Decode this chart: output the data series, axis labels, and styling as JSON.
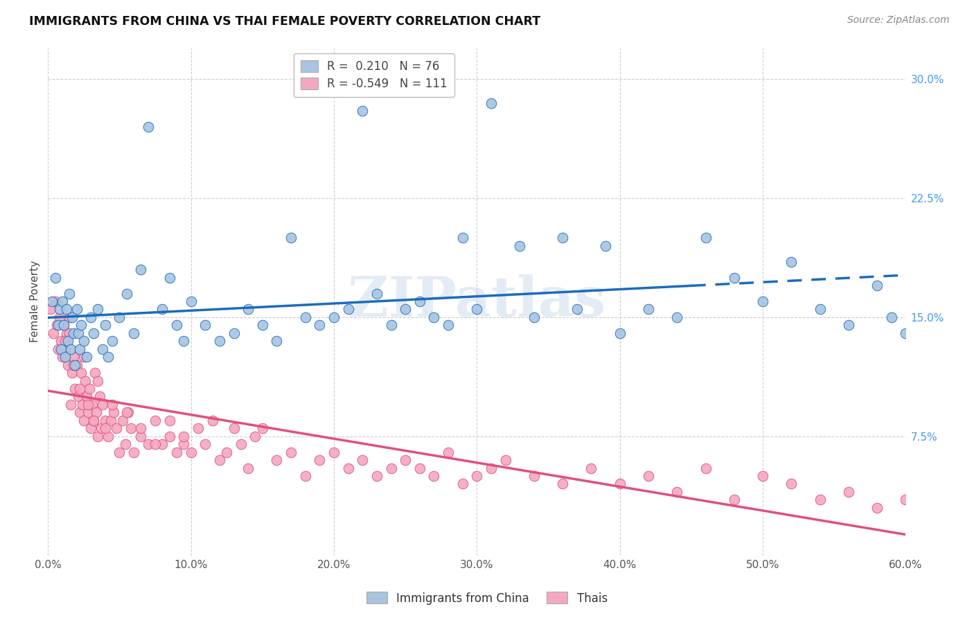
{
  "title": "IMMIGRANTS FROM CHINA VS THAI FEMALE POVERTY CORRELATION CHART",
  "source": "Source: ZipAtlas.com",
  "ylabel": "Female Poverty",
  "xlim": [
    0.0,
    0.6
  ],
  "ylim": [
    0.0,
    0.32
  ],
  "xticks": [
    0.0,
    0.1,
    0.2,
    0.3,
    0.4,
    0.5,
    0.6
  ],
  "xticklabels": [
    "0.0%",
    "10.0%",
    "20.0%",
    "30.0%",
    "40.0%",
    "50.0%",
    "60.0%"
  ],
  "yticks_right": [
    0.075,
    0.15,
    0.225,
    0.3
  ],
  "ytick_labels_right": [
    "7.5%",
    "15.0%",
    "22.5%",
    "30.0%"
  ],
  "china_R": 0.21,
  "china_N": 76,
  "thai_R": -0.549,
  "thai_N": 111,
  "china_color": "#a8c4e0",
  "thai_color": "#f4a8c0",
  "china_line_color": "#1a6bbf",
  "thai_line_color": "#e0507a",
  "legend_label_china": "Immigrants from China",
  "legend_label_thai": "Thais",
  "watermark": "ZIPatlas",
  "china_scatter_x": [
    0.003,
    0.005,
    0.007,
    0.008,
    0.009,
    0.01,
    0.011,
    0.012,
    0.013,
    0.014,
    0.015,
    0.016,
    0.017,
    0.018,
    0.019,
    0.02,
    0.021,
    0.022,
    0.023,
    0.025,
    0.027,
    0.03,
    0.032,
    0.035,
    0.038,
    0.04,
    0.042,
    0.045,
    0.05,
    0.055,
    0.06,
    0.065,
    0.07,
    0.08,
    0.085,
    0.09,
    0.095,
    0.1,
    0.11,
    0.12,
    0.13,
    0.14,
    0.15,
    0.16,
    0.17,
    0.18,
    0.19,
    0.2,
    0.21,
    0.22,
    0.23,
    0.24,
    0.25,
    0.26,
    0.27,
    0.28,
    0.29,
    0.3,
    0.31,
    0.33,
    0.34,
    0.36,
    0.37,
    0.39,
    0.4,
    0.42,
    0.44,
    0.46,
    0.48,
    0.5,
    0.52,
    0.54,
    0.56,
    0.58,
    0.59,
    0.6
  ],
  "china_scatter_y": [
    0.16,
    0.175,
    0.145,
    0.155,
    0.13,
    0.16,
    0.145,
    0.125,
    0.155,
    0.135,
    0.165,
    0.13,
    0.15,
    0.14,
    0.12,
    0.155,
    0.14,
    0.13,
    0.145,
    0.135,
    0.125,
    0.15,
    0.14,
    0.155,
    0.13,
    0.145,
    0.125,
    0.135,
    0.15,
    0.165,
    0.14,
    0.18,
    0.27,
    0.155,
    0.175,
    0.145,
    0.135,
    0.16,
    0.145,
    0.135,
    0.14,
    0.155,
    0.145,
    0.135,
    0.2,
    0.15,
    0.145,
    0.15,
    0.155,
    0.28,
    0.165,
    0.145,
    0.155,
    0.16,
    0.15,
    0.145,
    0.2,
    0.155,
    0.285,
    0.195,
    0.15,
    0.2,
    0.155,
    0.195,
    0.14,
    0.155,
    0.15,
    0.2,
    0.175,
    0.16,
    0.185,
    0.155,
    0.145,
    0.17,
    0.15,
    0.14
  ],
  "thai_scatter_x": [
    0.002,
    0.004,
    0.005,
    0.006,
    0.007,
    0.008,
    0.009,
    0.01,
    0.011,
    0.012,
    0.013,
    0.014,
    0.015,
    0.016,
    0.017,
    0.018,
    0.019,
    0.02,
    0.021,
    0.022,
    0.023,
    0.024,
    0.025,
    0.026,
    0.027,
    0.028,
    0.029,
    0.03,
    0.031,
    0.032,
    0.033,
    0.034,
    0.035,
    0.036,
    0.037,
    0.038,
    0.04,
    0.042,
    0.044,
    0.046,
    0.048,
    0.05,
    0.052,
    0.054,
    0.056,
    0.058,
    0.06,
    0.065,
    0.07,
    0.075,
    0.08,
    0.085,
    0.09,
    0.095,
    0.1,
    0.105,
    0.11,
    0.115,
    0.12,
    0.125,
    0.13,
    0.135,
    0.14,
    0.145,
    0.15,
    0.16,
    0.17,
    0.18,
    0.19,
    0.2,
    0.21,
    0.22,
    0.23,
    0.24,
    0.25,
    0.26,
    0.27,
    0.28,
    0.29,
    0.3,
    0.31,
    0.32,
    0.34,
    0.36,
    0.38,
    0.4,
    0.42,
    0.44,
    0.46,
    0.48,
    0.5,
    0.52,
    0.54,
    0.56,
    0.58,
    0.6,
    0.015,
    0.025,
    0.035,
    0.045,
    0.012,
    0.018,
    0.022,
    0.028,
    0.032,
    0.04,
    0.055,
    0.065,
    0.075,
    0.085,
    0.095
  ],
  "thai_scatter_y": [
    0.155,
    0.14,
    0.16,
    0.145,
    0.13,
    0.15,
    0.135,
    0.125,
    0.145,
    0.13,
    0.14,
    0.12,
    0.15,
    0.095,
    0.115,
    0.125,
    0.105,
    0.12,
    0.1,
    0.09,
    0.115,
    0.095,
    0.085,
    0.11,
    0.1,
    0.09,
    0.105,
    0.08,
    0.095,
    0.085,
    0.115,
    0.09,
    0.075,
    0.1,
    0.08,
    0.095,
    0.085,
    0.075,
    0.085,
    0.09,
    0.08,
    0.065,
    0.085,
    0.07,
    0.09,
    0.08,
    0.065,
    0.075,
    0.07,
    0.085,
    0.07,
    0.075,
    0.065,
    0.07,
    0.065,
    0.08,
    0.07,
    0.085,
    0.06,
    0.065,
    0.08,
    0.07,
    0.055,
    0.075,
    0.08,
    0.06,
    0.065,
    0.05,
    0.06,
    0.065,
    0.055,
    0.06,
    0.05,
    0.055,
    0.06,
    0.055,
    0.05,
    0.065,
    0.045,
    0.05,
    0.055,
    0.06,
    0.05,
    0.045,
    0.055,
    0.045,
    0.05,
    0.04,
    0.055,
    0.035,
    0.05,
    0.045,
    0.035,
    0.04,
    0.03,
    0.035,
    0.14,
    0.125,
    0.11,
    0.095,
    0.135,
    0.12,
    0.105,
    0.095,
    0.085,
    0.08,
    0.09,
    0.08,
    0.07,
    0.085,
    0.075
  ]
}
